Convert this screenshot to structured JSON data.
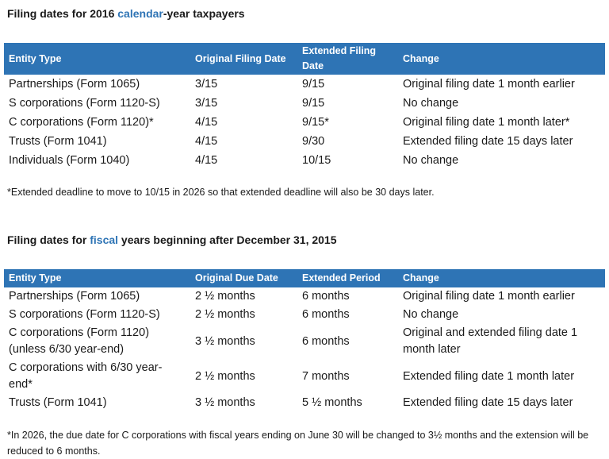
{
  "section1": {
    "heading_before": "Filing dates for 2016 ",
    "heading_accent": "calendar",
    "heading_after": "-year taxpayers",
    "headers": [
      "Entity Type",
      "Original Filing Date",
      "Extended Filing Date",
      "Change"
    ],
    "rows": [
      [
        "Partnerships (Form 1065)",
        "3/15",
        "9/15",
        "Original filing date 1 month earlier"
      ],
      [
        "S corporations (Form 1120-S)",
        "3/15",
        "9/15",
        "No change"
      ],
      [
        "C corporations (Form 1120)*",
        "4/15",
        "9/15*",
        "Original filing date 1 month later*"
      ],
      [
        "Trusts (Form 1041)",
        "4/15",
        "9/30",
        "Extended filing date 15 days later"
      ],
      [
        "Individuals (Form 1040)",
        "4/15",
        "10/15",
        "No change"
      ]
    ],
    "footnote": "*Extended deadline to move to 10/15 in 2026 so that extended deadline will also be 30 days later."
  },
  "section2": {
    "heading_before": "Filing dates for ",
    "heading_accent": "fiscal",
    "heading_after": " years beginning after December 31, 2015",
    "headers": [
      "Entity Type",
      "Original Due Date",
      "Extended Period",
      "Change"
    ],
    "rows": [
      [
        "Partnerships (Form 1065)",
        "2 ½  months",
        "6 months",
        "Original filing date 1 month earlier"
      ],
      [
        "S corporations (Form 1120-S)",
        "2 ½  months",
        "6 months",
        "No change"
      ],
      [
        "C corporations (Form 1120) (unless 6/30 year-end)",
        "3 ½ months",
        "6 months",
        "Original and extended filing date 1 month later"
      ],
      [
        "C corporations with 6/30 year-end*",
        "2 ½  months",
        "7 months",
        "Extended filing date 1 month later"
      ],
      [
        "Trusts (Form 1041)",
        "3 ½ months",
        "5 ½ months",
        "Extended filing date 15 days later"
      ]
    ],
    "footnote": "*In 2026, the due date for C corporations with fiscal years ending on June 30 will be changed to 3½ months and the extension will be reduced to 6 months."
  },
  "colors": {
    "header_bg": "#2e74b5",
    "accent_text": "#2e74b5",
    "body_text": "#1a1a1a"
  }
}
